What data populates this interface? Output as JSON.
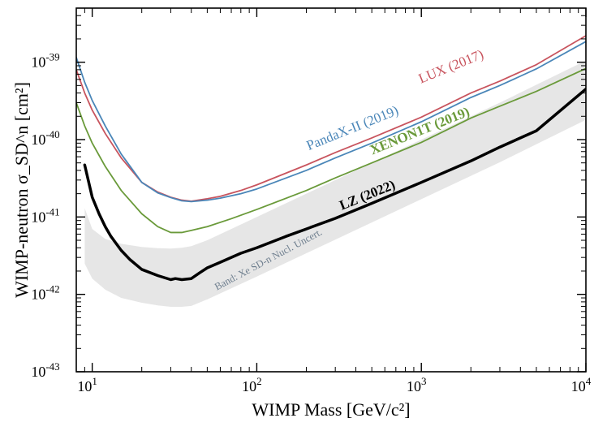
{
  "chart_data": {
    "type": "line",
    "title": "",
    "xlabel": "WIMP Mass [GeV/c²]",
    "ylabel": "WIMP-neutron σ_SD^n [cm²]",
    "xscale": "log",
    "yscale": "log",
    "xlim": [
      8,
      10000
    ],
    "ylim": [
      1e-43,
      5e-39
    ],
    "x_ticks": [
      {
        "value": 10,
        "base": "10",
        "exp": "1"
      },
      {
        "value": 100,
        "base": "10",
        "exp": "2"
      },
      {
        "value": 1000,
        "base": "10",
        "exp": "3"
      },
      {
        "value": 10000,
        "base": "10",
        "exp": "4"
      }
    ],
    "y_ticks": [
      {
        "value": 1e-39,
        "base": "10",
        "exp": "-39"
      },
      {
        "value": 1e-40,
        "base": "10",
        "exp": "-40"
      },
      {
        "value": 1e-41,
        "base": "10",
        "exp": "-41"
      },
      {
        "value": 1e-42,
        "base": "10",
        "exp": "-42"
      },
      {
        "value": 1e-43,
        "base": "10",
        "exp": "-43"
      }
    ],
    "band": {
      "label": "Band: Xe SD-n Nucl. Uncert.",
      "color": "#e6e6e6",
      "x": [
        9,
        10,
        12,
        15,
        20,
        25,
        30,
        35,
        40,
        50,
        100,
        300,
        1000,
        3000,
        10000
      ],
      "upper": [
        1.3e-41,
        7e-42,
        5.2e-42,
        4.5e-42,
        4.1e-42,
        3.95e-42,
        3.9e-42,
        4e-42,
        4.2e-42,
        5e-42,
        1e-41,
        3e-41,
        1e-40,
        3e-40,
        1.05e-39
      ],
      "lower": [
        2.5e-42,
        1.6e-42,
        1.15e-42,
        9e-43,
        7.8e-43,
        7.2e-43,
        6.9e-43,
        6.9e-43,
        7.1e-43,
        8.6e-43,
        1.7e-42,
        5.1e-42,
        1.7e-41,
        5.1e-41,
        1.8e-40
      ]
    },
    "series": [
      {
        "name": "LZ (2022)",
        "color": "#000000",
        "width": 3.5,
        "x": [
          9,
          10,
          11,
          12,
          13,
          15,
          17,
          20,
          25,
          30,
          32,
          35,
          40,
          45,
          50,
          60,
          80,
          100,
          150,
          200,
          300,
          500,
          1000,
          2000,
          3000,
          5000,
          10000
        ],
        "values": [
          4.7e-41,
          1.8e-41,
          1.1e-41,
          7.5e-42,
          5.6e-42,
          3.7e-42,
          2.8e-42,
          2.1e-42,
          1.75e-42,
          1.55e-42,
          1.6e-42,
          1.55e-42,
          1.6e-42,
          1.9e-42,
          2.2e-42,
          2.6e-42,
          3.4e-42,
          4e-42,
          5.6e-42,
          7e-42,
          9.6e-42,
          1.5e-41,
          2.8e-41,
          5.3e-41,
          8e-41,
          1.3e-40,
          4.5e-40
        ]
      },
      {
        "name": "XENON1T (2019)",
        "color": "#6a9a3a",
        "width": 1.8,
        "x": [
          8,
          9,
          10,
          12,
          15,
          20,
          25,
          30,
          35,
          40,
          50,
          70,
          100,
          200,
          300,
          500,
          1000,
          2000,
          3000,
          5000,
          10000
        ],
        "values": [
          3e-40,
          1.5e-40,
          9e-41,
          4.5e-41,
          2.2e-41,
          1.1e-41,
          7.5e-42,
          6.3e-42,
          6.3e-42,
          6.7e-42,
          7.5e-42,
          9.5e-42,
          1.25e-41,
          2.2e-41,
          3.2e-41,
          5e-41,
          9.2e-41,
          1.9e-40,
          2.7e-40,
          4.2e-40,
          8.3e-40
        ]
      },
      {
        "name": "LUX (2017)",
        "color": "#c8545e",
        "width": 1.8,
        "x": [
          8,
          9,
          10,
          12,
          15,
          20,
          25,
          30,
          35,
          40,
          50,
          60,
          80,
          100,
          200,
          300,
          500,
          1000,
          2000,
          3000,
          5000,
          10000
        ],
        "values": [
          8e-40,
          4e-40,
          2.4e-40,
          1.2e-40,
          5.8e-41,
          2.8e-41,
          2.1e-41,
          1.8e-41,
          1.65e-41,
          1.6e-41,
          1.72e-41,
          1.85e-41,
          2.2e-41,
          2.6e-41,
          4.7e-41,
          6.8e-41,
          1.05e-40,
          1.95e-40,
          4e-40,
          5.7e-40,
          9.3e-40,
          2.2e-39
        ]
      },
      {
        "name": "PandaX-II (2019)",
        "color": "#4a86b8",
        "width": 1.8,
        "x": [
          8,
          9,
          10,
          12,
          15,
          20,
          25,
          30,
          35,
          40,
          50,
          60,
          80,
          100,
          200,
          300,
          500,
          1000,
          2000,
          3000,
          5000,
          10000
        ],
        "values": [
          1.15e-39,
          5.5e-40,
          3.2e-40,
          1.5e-40,
          6.5e-41,
          2.8e-41,
          2.05e-41,
          1.78e-41,
          1.62e-41,
          1.58e-41,
          1.65e-41,
          1.75e-41,
          2e-41,
          2.3e-41,
          4e-41,
          5.8e-41,
          9e-41,
          1.7e-40,
          3.5e-40,
          5e-40,
          8.2e-40,
          1.85e-39
        ]
      }
    ],
    "annotations": [
      {
        "text": "LZ (2022)",
        "color": "#000000",
        "bold": true,
        "anchor_x": 480,
        "anchor_y": 1.7e-41,
        "angle": -22
      },
      {
        "text": "XENON1T (2019)",
        "color": "#6a9a3a",
        "bold": true,
        "anchor_x": 1000,
        "anchor_y": 1.15e-40,
        "angle": -22
      },
      {
        "text": "PandaX-II (2019)",
        "color": "#4a86b8",
        "bold": false,
        "anchor_x": 390,
        "anchor_y": 1.25e-40,
        "angle": -22
      },
      {
        "text": "LUX (2017)",
        "color": "#c8545e",
        "bold": false,
        "anchor_x": 1550,
        "anchor_y": 7.8e-40,
        "angle": -22
      },
      {
        "text": "Band: Xe SD-n Nucl. Uncert.",
        "color": "#6f7f8f",
        "bold": false,
        "anchor_x": 120,
        "anchor_y": 2.6e-42,
        "angle": -28
      }
    ]
  }
}
